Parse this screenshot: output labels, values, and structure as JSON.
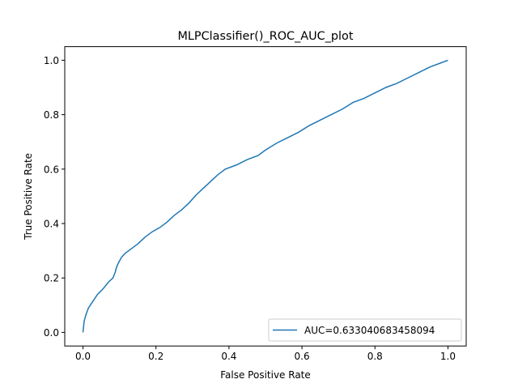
{
  "chart_data": {
    "type": "line",
    "title": "MLPClassifier()_ROC_AUC_plot",
    "xlabel": "False Positive Rate",
    "ylabel": "True Positive Rate",
    "xlim": [
      -0.05,
      1.05
    ],
    "ylim": [
      -0.05,
      1.05
    ],
    "xticks": [
      "0.0",
      "0.2",
      "0.4",
      "0.6",
      "0.8",
      "1.0"
    ],
    "yticks": [
      "0.0",
      "0.2",
      "0.4",
      "0.6",
      "0.8",
      "1.0"
    ],
    "grid": false,
    "legend_position": "bottom-right",
    "series": [
      {
        "name": "AUC=0.633040683458094",
        "color": "#1f77b4",
        "x": [
          0.0,
          0.003,
          0.008,
          0.015,
          0.025,
          0.04,
          0.055,
          0.07,
          0.082,
          0.088,
          0.092,
          0.097,
          0.105,
          0.115,
          0.13,
          0.15,
          0.17,
          0.19,
          0.21,
          0.23,
          0.25,
          0.27,
          0.29,
          0.31,
          0.33,
          0.35,
          0.37,
          0.39,
          0.42,
          0.45,
          0.48,
          0.5,
          0.53,
          0.56,
          0.59,
          0.62,
          0.65,
          0.68,
          0.71,
          0.74,
          0.77,
          0.8,
          0.83,
          0.86,
          0.89,
          0.92,
          0.95,
          0.98,
          1.0
        ],
        "y": [
          0.0,
          0.04,
          0.065,
          0.09,
          0.11,
          0.14,
          0.16,
          0.185,
          0.2,
          0.22,
          0.24,
          0.255,
          0.275,
          0.29,
          0.305,
          0.325,
          0.35,
          0.37,
          0.385,
          0.405,
          0.43,
          0.45,
          0.475,
          0.505,
          0.53,
          0.555,
          0.58,
          0.6,
          0.615,
          0.635,
          0.65,
          0.67,
          0.695,
          0.715,
          0.735,
          0.76,
          0.78,
          0.8,
          0.82,
          0.845,
          0.86,
          0.88,
          0.9,
          0.915,
          0.935,
          0.955,
          0.975,
          0.99,
          1.0
        ]
      }
    ]
  }
}
